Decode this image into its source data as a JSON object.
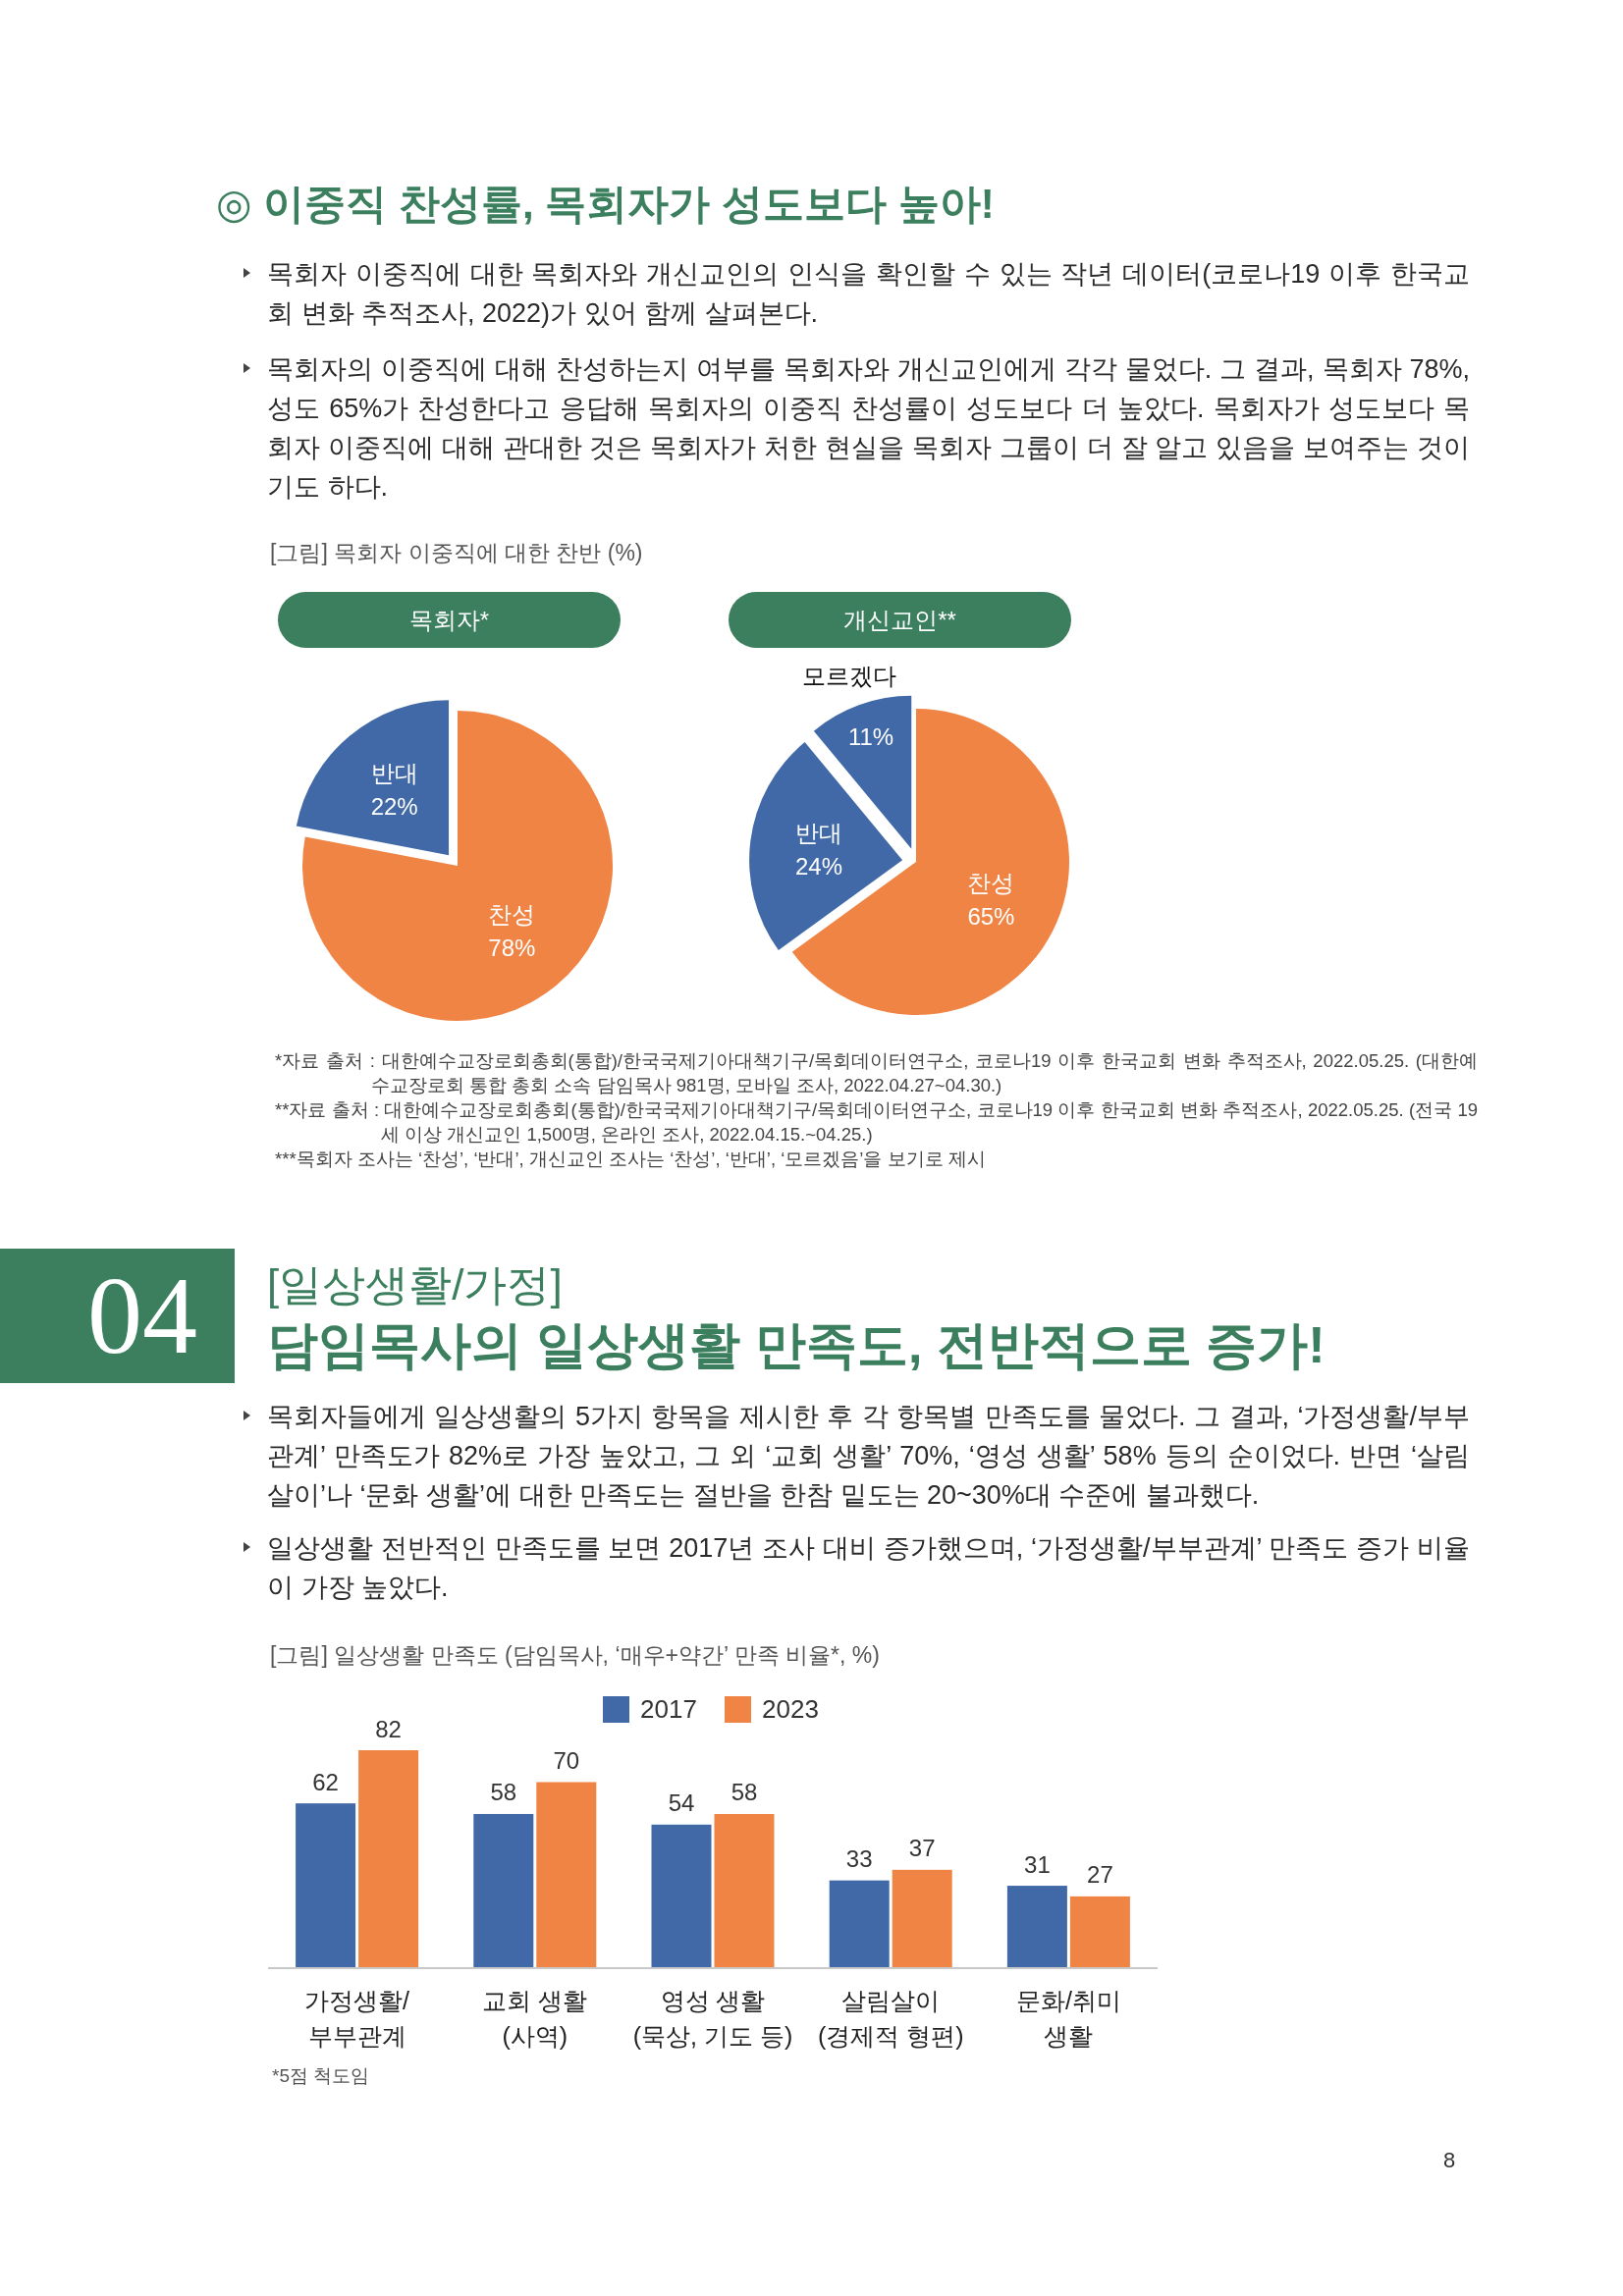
{
  "chart_data": [
    {
      "type": "pie",
      "title": "목회자*",
      "categories": [
        "찬성",
        "반대"
      ],
      "values": [
        78,
        22
      ],
      "value_labels": [
        "78%",
        "22%"
      ],
      "colors": [
        "#f08444",
        "#4169a8"
      ],
      "annotations": [
        "◎ 이중직 찬성률, 목회자가 성도보다 높아!",
        "목회자 이중직에 대한 목회자와 개신교인의 인식을 확인할 수 있는 작년 데이터(코로나19 이후 한국교회 변화 추적조사, 2022)가 있어 함께 살펴본다.",
        "목회자의 이중직에 대해 찬성하는지 여부를 목회자와 개신교인에게 각각 물었다. 그 결과, 목회자 78%, 성도 65%가 찬성한다고 응답해 목회자의 이중직 찬성률이 성도보다 더 높았다. 목회자가 성도보다 목회자 이중직에 대해 관대한 것은 목회자가 처한 현실을 목회자 그룹이 더 잘 알고 있음을 보여주는 것이기도 하다.",
        "[그림] 목회자 이중직에 대한 찬반 (%)"
      ]
    },
    {
      "type": "pie",
      "title": "개신교인**",
      "categories": [
        "찬성",
        "반대",
        "모르겠다"
      ],
      "values": [
        65,
        24,
        11
      ],
      "value_labels": [
        "65%",
        "24%",
        "11%"
      ],
      "colors": [
        "#f08444",
        "#4169a8",
        "#4169a8"
      ],
      "annotations": [
        "*자료 출처 : 대한예수교장로회총회(통합)/한국국제기아대책기구/목회데이터연구소, 코로나19 이후 한국교회 변화 추적조사, 2022.05.25. (대한예수교장로회 통합 총회 소속 담임목사 981명, 모바일 조사, 2022.04.27~04.30.)",
        "**자료 출처 : 대한예수교장로회총회(통합)/한국국제기아대책기구/목회데이터연구소, 코로나19 이후 한국교회 변화 추적조사, 2022.05.25. (전국 19세 이상 개신교인 1,500명, 온라인 조사, 2022.04.15.~04.25.)",
        "***목회자 조사는 ‘찬성’, ‘반대’, 개신교인 조사는 ‘찬성’, ‘반대’, ‘모르겠음’을 보기로 제시"
      ]
    },
    {
      "type": "bar",
      "title": "[그림] 일상생활 만족도 (담임목사, ‘매우+약간’ 만족 비율*, %)",
      "categories": [
        "가정생활/\n부부관계",
        "교회 생활\n(사역)",
        "영성 생활\n(묵상, 기도 등)",
        "살림살이\n(경제적 형편)",
        "문화/취미\n생활"
      ],
      "series": [
        {
          "name": "2017",
          "color": "#4169a8",
          "values": [
            62,
            58,
            54,
            33,
            31
          ]
        },
        {
          "name": "2023",
          "color": "#f08444",
          "values": [
            82,
            70,
            58,
            37,
            27
          ]
        }
      ],
      "data_labels": true,
      "legend": "top",
      "annotations": [
        "04",
        "[일상생활/가정]",
        "담임목사의 일상생활 만족도, 전반적으로 증가!",
        "목회자들에게 일상생활의 5가지 항목을 제시한 후 각 항목별 만족도를 물었다. 그 결과, ‘가정생활/부부관계’ 만족도가 82%로 가장 높았고, 그 외 ‘교회 생활’ 70%, ‘영성 생활’ 58% 등의 순이었다. 반면 ‘살림살이’나 ‘문화 생활’에 대한 만족도는 절반을 한참 밑도는 20~30%대 수준에 불과했다.",
        "일상생활 전반적인 만족도를 보면 2017년 조사 대비 증가했으며, ‘가정생활/부부관계’ 만족도 증가 비율이 가장 높았다.",
        "*5점 척도임",
        "8"
      ]
    }
  ]
}
